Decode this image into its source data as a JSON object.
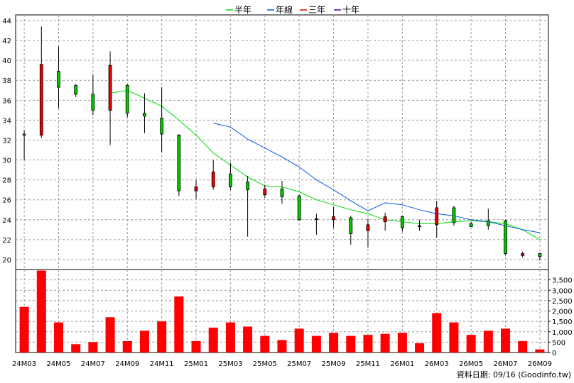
{
  "legend": [
    {
      "label": "半年",
      "color": "#00dd00"
    },
    {
      "label": "年線",
      "color": "#0055ee"
    },
    {
      "label": "三年",
      "color": "#ee0000"
    },
    {
      "label": "十年",
      "color": "#4400aa"
    }
  ],
  "footer": {
    "date_label": "資料日期: 09/16",
    "source": "(Goodinfo.tw)"
  },
  "chart_data": [
    {
      "type": "candlestick",
      "title": "",
      "ylim": [
        19,
        44
      ],
      "y_ticks": [
        20,
        22,
        24,
        26,
        28,
        30,
        32,
        34,
        36,
        38,
        40,
        42,
        44
      ],
      "grid": true,
      "legend_position": "top-center",
      "x_labels": [
        "24M03",
        "24M05",
        "24M07",
        "24M09",
        "24M11",
        "25M01",
        "25M03",
        "25M05",
        "25M07",
        "25M09",
        "25M11",
        "26M01",
        "26M03",
        "26M05",
        "26M07",
        "26M09"
      ],
      "up_color": "#ee0000",
      "down_color": "#00cc00",
      "candles": [
        {
          "open": 32.6,
          "high": 33.0,
          "low": 30.0,
          "close": 32.5
        },
        {
          "open": 32.5,
          "high": 43.4,
          "low": 32.2,
          "close": 39.6
        },
        {
          "open": 38.9,
          "high": 41.4,
          "low": 35.2,
          "close": 37.3
        },
        {
          "open": 37.5,
          "high": 37.6,
          "low": 36.3,
          "close": 36.6
        },
        {
          "open": 36.6,
          "high": 38.6,
          "low": 34.5,
          "close": 35.0
        },
        {
          "open": 35.0,
          "high": 40.9,
          "low": 31.5,
          "close": 39.5
        },
        {
          "open": 37.5,
          "high": 37.6,
          "low": 34.3,
          "close": 34.7
        },
        {
          "open": 34.7,
          "high": 36.7,
          "low": 32.7,
          "close": 34.4
        },
        {
          "open": 34.2,
          "high": 37.3,
          "low": 30.8,
          "close": 32.6
        },
        {
          "open": 32.5,
          "high": 32.6,
          "low": 26.4,
          "close": 26.9
        },
        {
          "open": 26.9,
          "high": 28.0,
          "low": 26.1,
          "close": 27.3
        },
        {
          "open": 27.3,
          "high": 30.0,
          "low": 27.0,
          "close": 28.8
        },
        {
          "open": 28.6,
          "high": 29.7,
          "low": 27.0,
          "close": 27.3
        },
        {
          "open": 27.8,
          "high": 28.4,
          "low": 22.3,
          "close": 27.0
        },
        {
          "open": 26.5,
          "high": 27.5,
          "low": 26.2,
          "close": 27.1
        },
        {
          "open": 27.1,
          "high": 27.9,
          "low": 25.6,
          "close": 26.3
        },
        {
          "open": 26.4,
          "high": 26.5,
          "low": 23.9,
          "close": 24.0
        },
        {
          "open": 24.0,
          "high": 24.6,
          "low": 22.5,
          "close": 24.1
        },
        {
          "open": 24.0,
          "high": 25.3,
          "low": 23.2,
          "close": 24.3
        },
        {
          "open": 24.2,
          "high": 24.4,
          "low": 21.5,
          "close": 22.6
        },
        {
          "open": 22.9,
          "high": 24.1,
          "low": 21.2,
          "close": 23.5
        },
        {
          "open": 23.8,
          "high": 24.7,
          "low": 22.9,
          "close": 24.3
        },
        {
          "open": 24.3,
          "high": 24.4,
          "low": 22.8,
          "close": 23.2
        },
        {
          "open": 23.3,
          "high": 24.0,
          "low": 22.9,
          "close": 23.4
        },
        {
          "open": 23.5,
          "high": 25.9,
          "low": 22.2,
          "close": 25.2
        },
        {
          "open": 25.2,
          "high": 25.4,
          "low": 23.4,
          "close": 23.7
        },
        {
          "open": 23.6,
          "high": 23.8,
          "low": 23.3,
          "close": 23.3
        },
        {
          "open": 23.9,
          "high": 25.1,
          "low": 23.0,
          "close": 23.4
        },
        {
          "open": 23.9,
          "high": 24.0,
          "low": 20.4,
          "close": 20.6
        },
        {
          "open": 20.4,
          "high": 20.8,
          "low": 20.2,
          "close": 20.6
        },
        {
          "open": 20.6,
          "high": 20.7,
          "low": 19.9,
          "close": 20.3
        }
      ],
      "ma_half_year": [
        null,
        null,
        null,
        null,
        null,
        36.7,
        37.0,
        36.2,
        35.4,
        34.0,
        32.5,
        30.7,
        29.5,
        28.3,
        27.4,
        27.3,
        26.8,
        26.0,
        25.5,
        25.0,
        24.6,
        24.0,
        23.8,
        23.6,
        23.6,
        23.8,
        23.9,
        23.8,
        23.6,
        23.0,
        22.0
      ],
      "ma_year": [
        null,
        null,
        null,
        null,
        null,
        null,
        null,
        null,
        null,
        null,
        null,
        33.7,
        33.3,
        32.1,
        31.2,
        30.3,
        29.3,
        28.0,
        27.0,
        25.9,
        24.9,
        25.7,
        25.5,
        25.0,
        24.6,
        24.4,
        24.0,
        23.8,
        23.4,
        23.0,
        22.7
      ]
    },
    {
      "type": "bar",
      "title": "",
      "ylim": [
        0,
        4000
      ],
      "y_ticks": [
        0,
        500,
        1000,
        1500,
        2000,
        2500,
        3000,
        3500
      ],
      "y_tick_labels": [
        "0",
        "500",
        "1,000",
        "1,500",
        "2,000",
        "2,500",
        "3,000",
        "3,500"
      ],
      "bar_color": "#ff0000",
      "values": [
        2200,
        3950,
        1450,
        400,
        500,
        1700,
        550,
        1050,
        1500,
        2700,
        550,
        1200,
        1450,
        1250,
        800,
        600,
        1150,
        800,
        950,
        800,
        850,
        900,
        950,
        450,
        1900,
        1450,
        850,
        1050,
        1150,
        550,
        150
      ]
    }
  ]
}
